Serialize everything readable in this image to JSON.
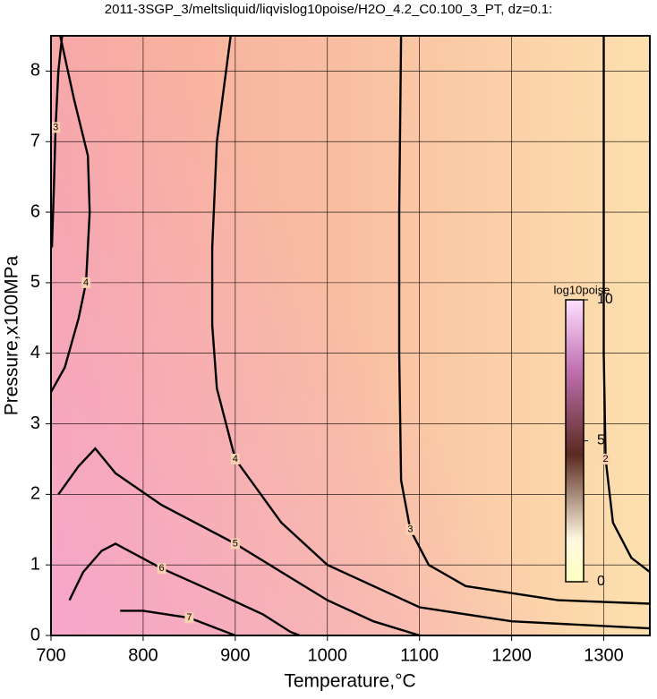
{
  "chart_data": {
    "type": "contour",
    "title": "2011-3SGP_3/meltsliquid/liqvislog10poise/H2O_4.2_C0.100_3_PT, dz=0.1:",
    "x_label": "Temperature,°C",
    "y_label": "Pressure,x100MPa",
    "xlim": [
      700,
      1350
    ],
    "ylim": [
      0,
      8.5
    ],
    "xticks": [
      700,
      800,
      900,
      1000,
      1100,
      1200,
      1300
    ],
    "yticks": [
      0,
      1,
      2,
      3,
      4,
      5,
      6,
      7,
      8
    ],
    "grid": true,
    "colorbar": {
      "label": "log10poise",
      "lim": [
        0,
        10
      ],
      "ticks": [
        0,
        5,
        10
      ]
    },
    "contours": [
      {
        "level": 2,
        "x": [
          1300,
          1300,
          1300,
          1302,
          1310,
          1330,
          1350
        ],
        "y": [
          8.5,
          5.9,
          4.0,
          2.5,
          1.6,
          1.1,
          0.9
        ]
      },
      {
        "level": 3,
        "x": [
          1080,
          1078,
          1078,
          1078,
          1080,
          1090,
          1110,
          1150,
          1250,
          1350
        ],
        "y": [
          8.5,
          6.0,
          4.8,
          4.0,
          2.2,
          1.5,
          1.0,
          0.7,
          0.5,
          0.45
        ]
      },
      {
        "level": 4,
        "x": [
          895,
          880,
          875,
          875,
          880,
          900,
          950,
          1000,
          1100,
          1200,
          1350
        ],
        "y": [
          8.5,
          7.0,
          5.5,
          4.4,
          3.5,
          2.5,
          1.6,
          1.0,
          0.4,
          0.2,
          0.1
        ]
      },
      {
        "level": 4,
        "x": [
          710,
          725,
          740,
          742,
          738,
          730,
          715,
          700
        ],
        "y": [
          8.5,
          7.6,
          6.8,
          6.0,
          5.0,
          4.5,
          3.8,
          3.45
        ]
      },
      {
        "level": 3,
        "x": [
          701,
          703,
          705,
          708,
          712
        ],
        "y": [
          5.5,
          6.3,
          7.2,
          8.0,
          8.5
        ]
      },
      {
        "level": 5,
        "x": [
          708,
          730,
          748,
          770,
          820,
          900,
          950,
          1000,
          1050,
          1100
        ],
        "y": [
          2.0,
          2.4,
          2.65,
          2.3,
          1.85,
          1.3,
          0.9,
          0.5,
          0.2,
          0.0
        ]
      },
      {
        "level": 6,
        "x": [
          720,
          735,
          755,
          770,
          820,
          880,
          930,
          960,
          970
        ],
        "y": [
          0.5,
          0.9,
          1.2,
          1.3,
          0.95,
          0.6,
          0.3,
          0.05,
          0.0
        ]
      },
      {
        "level": 7,
        "x": [
          775,
          800,
          850,
          880,
          900
        ],
        "y": [
          0.35,
          0.35,
          0.25,
          0.1,
          0.0
        ]
      }
    ]
  }
}
